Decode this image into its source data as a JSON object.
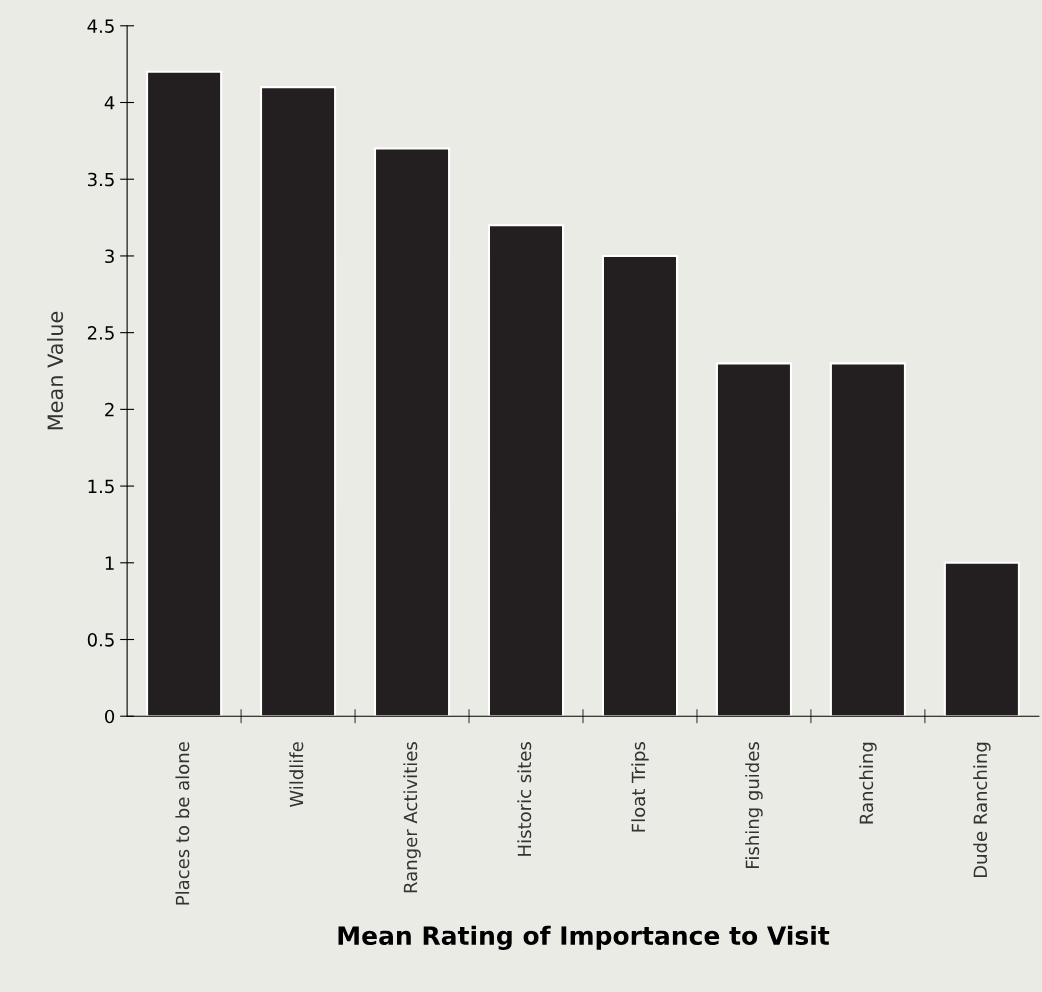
{
  "chart_data": {
    "type": "bar",
    "xlabel": "Mean Rating of Importance to Visit",
    "ylabel": "Mean Value",
    "categories": [
      "Places to be alone",
      "Wildlife",
      "Ranger Activities",
      "Historic sites",
      "Float Trips",
      "Fishing guides",
      "Ranching",
      "Dude Ranching"
    ],
    "values": [
      4.2,
      4.1,
      3.7,
      3.2,
      3.0,
      2.3,
      2.3,
      1.0
    ],
    "color": "#231f20",
    "ylim": [
      0,
      4.5
    ],
    "yticks": [
      0,
      0.5,
      1,
      1.5,
      2,
      2.5,
      3,
      3.5,
      4,
      4.5
    ],
    "grid": false,
    "legend": false
  }
}
